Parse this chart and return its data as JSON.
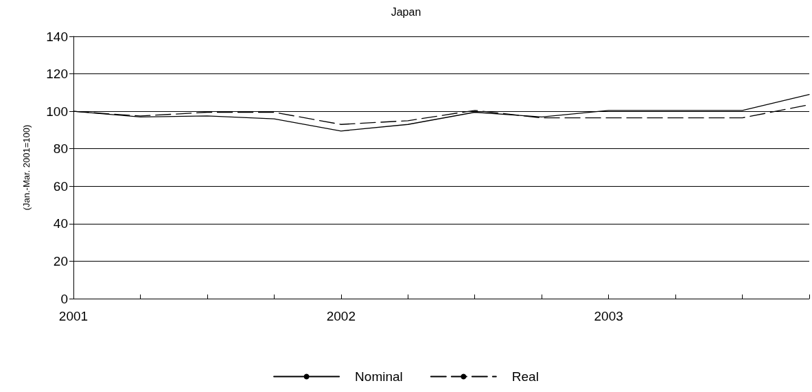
{
  "chart_data": {
    "type": "line",
    "title": "Japan",
    "ylabel": "(Jan.-Mar. 2001=100)",
    "categories": [
      "2001",
      null,
      null,
      null,
      "2002",
      null,
      null,
      null,
      "2003",
      null,
      null,
      null
    ],
    "series": [
      {
        "name": "Nominal",
        "color": "#000000",
        "line_style": "solid",
        "values": [
          100,
          97,
          97.5,
          96,
          89.5,
          93,
          99.5,
          97,
          100.5,
          100.5,
          100.5,
          109
        ]
      },
      {
        "name": "Real",
        "color": "#000000",
        "line_style": "dashed",
        "values": [
          100,
          97.5,
          99.5,
          99.5,
          93,
          95,
          100.5,
          96.5,
          96.5,
          96.5,
          96.5,
          103.5
        ]
      }
    ],
    "ylim": [
      0,
      140
    ],
    "yticks": [
      0,
      20,
      40,
      60,
      80,
      100,
      120,
      140
    ],
    "grid": "y",
    "legend": "bottom",
    "marker": "none"
  }
}
